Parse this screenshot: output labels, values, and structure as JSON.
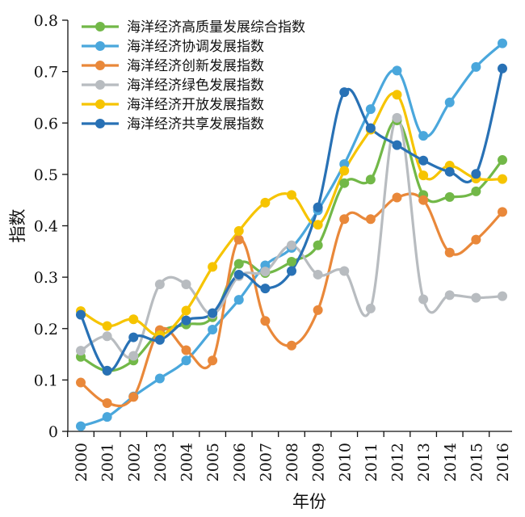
{
  "chart_data": {
    "type": "line",
    "xlabel": "年份",
    "ylabel": "指数",
    "ylim": [
      0,
      0.8
    ],
    "yticks": [
      "0",
      "0.1",
      "0.2",
      "0.3",
      "0.4",
      "0.5",
      "0.6",
      "0.7",
      "0.8"
    ],
    "yticks_values": [
      0,
      0.1,
      0.2,
      0.3,
      0.4,
      0.5,
      0.6,
      0.7,
      0.8
    ],
    "categories": [
      "2000",
      "2001",
      "2002",
      "2003",
      "2004",
      "2005",
      "2006",
      "2007",
      "2008",
      "2009",
      "2010",
      "2011",
      "2012",
      "2013",
      "2014",
      "2015",
      "2016"
    ],
    "grid": false,
    "legend_position": "top-left",
    "smooth": true,
    "series": [
      {
        "name": "海洋经济高质量发展综合指数",
        "color": "#72b848",
        "values": [
          0.145,
          0.118,
          0.138,
          0.193,
          0.208,
          0.222,
          0.326,
          0.308,
          0.33,
          0.362,
          0.483,
          0.49,
          0.605,
          0.46,
          0.456,
          0.467,
          0.528
        ]
      },
      {
        "name": "海洋经济协调发展指数",
        "color": "#4aa7dc",
        "values": [
          0.01,
          0.028,
          0.068,
          0.103,
          0.138,
          0.198,
          0.256,
          0.323,
          0.357,
          0.43,
          0.52,
          0.627,
          0.702,
          0.575,
          0.64,
          0.709,
          0.755
        ]
      },
      {
        "name": "海洋经济创新发展指数",
        "color": "#e9883a",
        "values": [
          0.095,
          0.055,
          0.067,
          0.197,
          0.158,
          0.138,
          0.373,
          0.215,
          0.167,
          0.236,
          0.413,
          0.413,
          0.455,
          0.45,
          0.348,
          0.373,
          0.427
        ]
      },
      {
        "name": "海洋经济绿色发展指数",
        "color": "#b8bcc0",
        "values": [
          0.157,
          0.185,
          0.147,
          0.286,
          0.286,
          0.228,
          0.302,
          0.311,
          0.362,
          0.305,
          0.312,
          0.239,
          0.61,
          0.257,
          0.265,
          0.26,
          0.263
        ]
      },
      {
        "name": "海洋经济开放发展指数",
        "color": "#f6c400",
        "values": [
          0.234,
          0.205,
          0.218,
          0.187,
          0.235,
          0.32,
          0.39,
          0.445,
          0.46,
          0.402,
          0.507,
          0.587,
          0.655,
          0.498,
          0.517,
          0.492,
          0.491
        ]
      },
      {
        "name": "海洋经济共享发展指数",
        "color": "#2871b5",
        "values": [
          0.227,
          0.118,
          0.183,
          0.178,
          0.216,
          0.23,
          0.305,
          0.278,
          0.312,
          0.436,
          0.66,
          0.59,
          0.557,
          0.527,
          0.505,
          0.501,
          0.706
        ]
      }
    ]
  }
}
